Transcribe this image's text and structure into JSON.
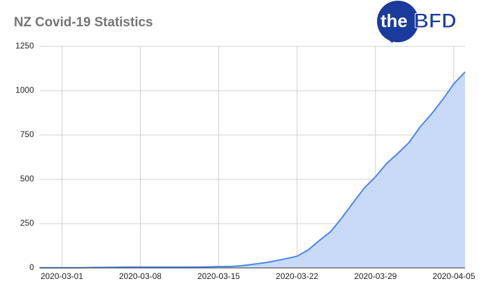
{
  "chart_data": {
    "type": "area",
    "title": "NZ Covid-19 Statistics",
    "logo": [
      "the",
      "BFD"
    ],
    "x": [
      "2020-02-28",
      "2020-02-29",
      "2020-03-01",
      "2020-03-02",
      "2020-03-03",
      "2020-03-04",
      "2020-03-05",
      "2020-03-06",
      "2020-03-07",
      "2020-03-08",
      "2020-03-09",
      "2020-03-10",
      "2020-03-11",
      "2020-03-12",
      "2020-03-13",
      "2020-03-14",
      "2020-03-15",
      "2020-03-16",
      "2020-03-17",
      "2020-03-18",
      "2020-03-19",
      "2020-03-20",
      "2020-03-21",
      "2020-03-22",
      "2020-03-23",
      "2020-03-24",
      "2020-03-25",
      "2020-03-26",
      "2020-03-27",
      "2020-03-28",
      "2020-03-29",
      "2020-03-30",
      "2020-03-31",
      "2020-04-01",
      "2020-04-02",
      "2020-04-03",
      "2020-04-04",
      "2020-04-05",
      "2020-04-06"
    ],
    "values": [
      1,
      1,
      1,
      1,
      1,
      3,
      3,
      4,
      5,
      5,
      5,
      5,
      5,
      5,
      5,
      6,
      8,
      8,
      12,
      20,
      28,
      39,
      52,
      66,
      102,
      155,
      205,
      283,
      368,
      451,
      514,
      589,
      647,
      708,
      797,
      868,
      950,
      1039,
      1106
    ],
    "color": "#4a86e8",
    "fill": "#c9daf8",
    "xlim": [
      "2020-02-28",
      "2020-04-06"
    ],
    "xticks": [
      "2020-03-01",
      "2020-03-08",
      "2020-03-15",
      "2020-03-22",
      "2020-03-29",
      "2020-04-05"
    ],
    "ylim": [
      0,
      1250
    ],
    "yticks": [
      0,
      250,
      500,
      750,
      1000,
      1250
    ],
    "grid": true
  }
}
